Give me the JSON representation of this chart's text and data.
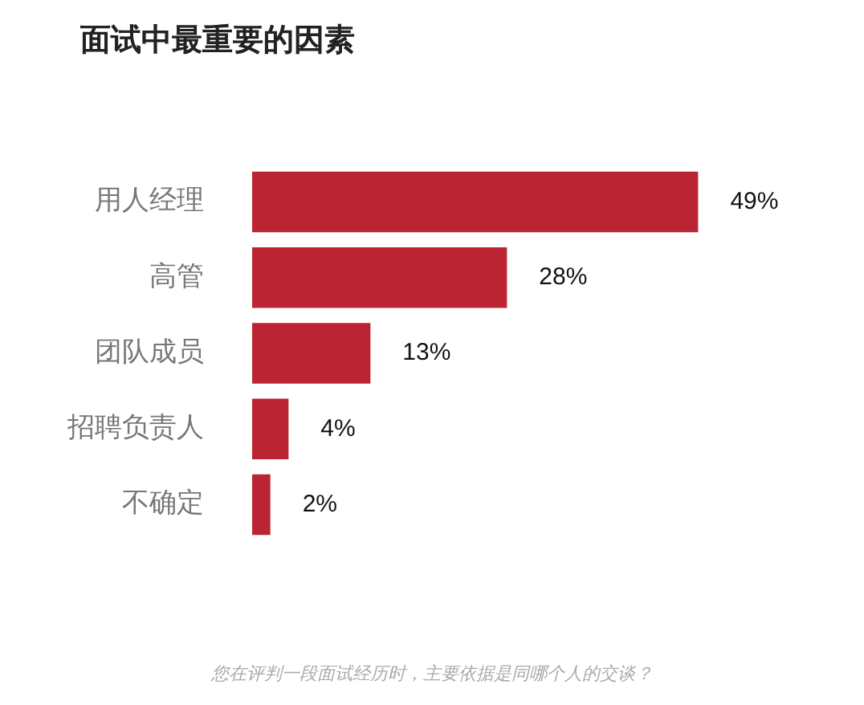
{
  "chart_data": {
    "type": "bar",
    "orientation": "horizontal",
    "title": "面试中最重要的因素",
    "categories": [
      "用人经理",
      "高管",
      "团队成员",
      "招聘负责人",
      "不确定"
    ],
    "values": [
      49,
      28,
      13,
      4,
      2
    ],
    "value_labels": [
      "49%",
      "28%",
      "13%",
      "4%",
      "2%"
    ],
    "color": "#bb2533",
    "legend": false,
    "annotations": [
      "您在评判一段面试经历时，主要依据是同哪个人的交谈？"
    ]
  }
}
